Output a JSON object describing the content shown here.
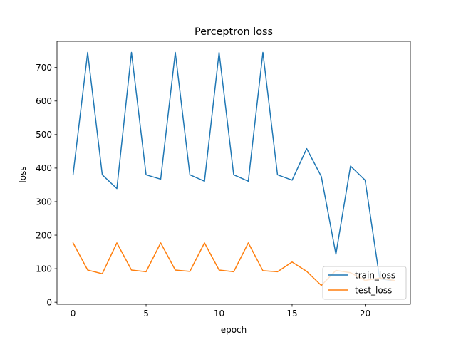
{
  "chart_data": {
    "type": "line",
    "title": "Perceptron loss",
    "xlabel": "epoch",
    "ylabel": "loss",
    "xlim": [
      -1.1,
      23.1
    ],
    "ylim": [
      -6,
      778
    ],
    "xticks": [
      0,
      5,
      10,
      15,
      20
    ],
    "yticks": [
      0,
      100,
      200,
      300,
      400,
      500,
      600,
      700
    ],
    "grid": false,
    "legend": "lower-right",
    "x": [
      0,
      1,
      2,
      3,
      4,
      5,
      6,
      7,
      8,
      9,
      10,
      11,
      12,
      13,
      14,
      15,
      16,
      17,
      18,
      19,
      20,
      21,
      22
    ],
    "series": [
      {
        "name": "train_loss",
        "color": "#1f77b4",
        "values": [
          380,
          745,
          380,
          339,
          745,
          380,
          367,
          745,
          380,
          361,
          745,
          380,
          361,
          745,
          380,
          364,
          458,
          375,
          143,
          406,
          364,
          70,
          64
        ]
      },
      {
        "name": "test_loss",
        "color": "#ff7f0e",
        "values": [
          177,
          96,
          85,
          177,
          96,
          91,
          177,
          96,
          92,
          177,
          96,
          91,
          177,
          94,
          91,
          120,
          92,
          50,
          95,
          88,
          65,
          72,
          65
        ]
      }
    ]
  }
}
